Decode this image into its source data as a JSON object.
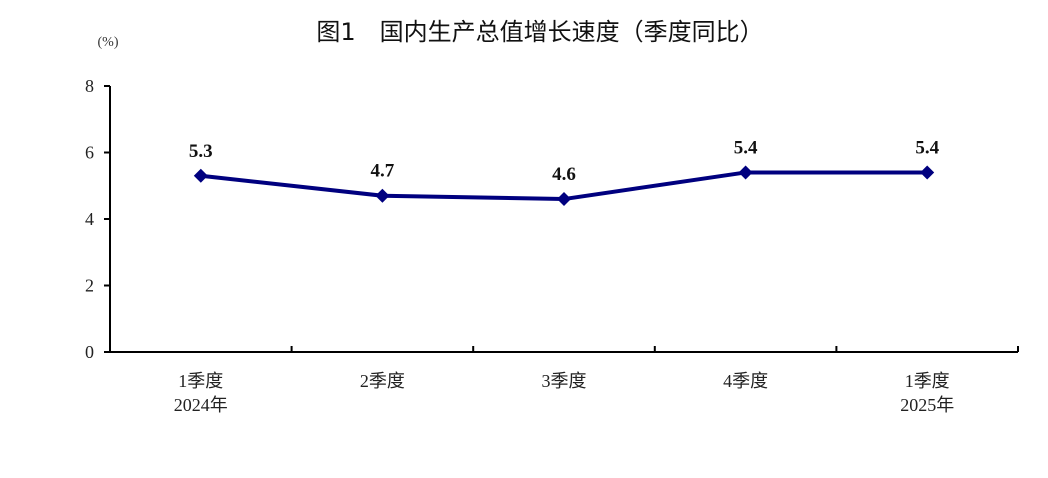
{
  "chart_data": {
    "type": "line",
    "title": "图1　国内生产总值增长速度（季度同比）",
    "ylabel": "(%)",
    "xlabel": "",
    "categories": [
      [
        "1季度",
        "2024年"
      ],
      [
        "2季度"
      ],
      [
        "3季度"
      ],
      [
        "4季度"
      ],
      [
        "1季度",
        "2025年"
      ]
    ],
    "values": [
      5.3,
      4.7,
      4.6,
      5.4,
      5.4
    ],
    "data_labels": [
      "5.3",
      "4.7",
      "4.6",
      "5.4",
      "5.4"
    ],
    "ylim": [
      0,
      8
    ],
    "yticks": [
      0,
      2,
      4,
      6,
      8
    ],
    "grid": false,
    "marker": "diamond",
    "series_color": "#00007f"
  }
}
